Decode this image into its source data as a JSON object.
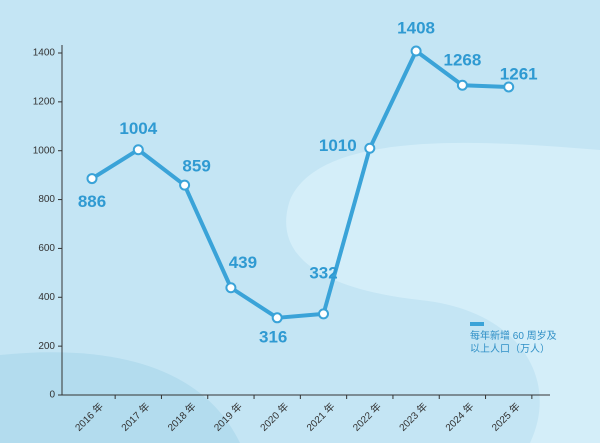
{
  "chart_data": {
    "type": "line",
    "categories": [
      "2016 年",
      "2017 年",
      "2018 年",
      "2019 年",
      "2020 年",
      "2021 年",
      "2022 年",
      "2023 年",
      "2024 年",
      "2025 年"
    ],
    "series": [
      {
        "name": "每年新增 60 周岁及以上人口（万人）",
        "color": "#3aa3d8",
        "values": [
          886,
          1004,
          859,
          439,
          316,
          332,
          1010,
          1408,
          1268,
          1261
        ]
      }
    ],
    "ylim": [
      0,
      1400
    ],
    "yticks": [
      0,
      200,
      400,
      600,
      800,
      1000,
      1200,
      1400
    ]
  }
}
